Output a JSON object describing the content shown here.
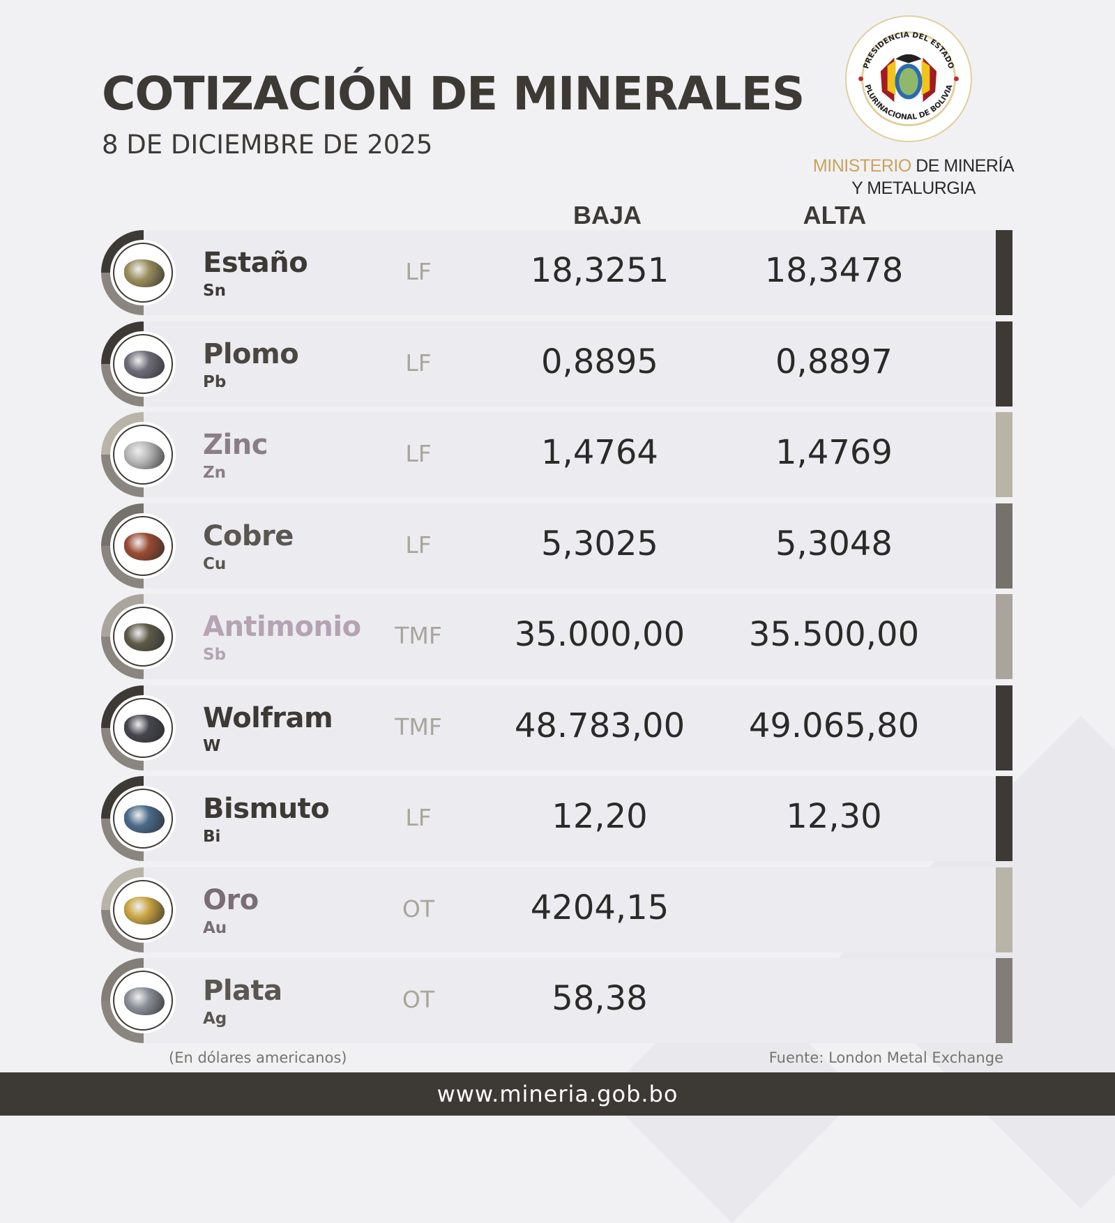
{
  "header": {
    "title": "COTIZACIÓN DE MINERALES",
    "date": "8 DE DICIEMBRE DE 2025"
  },
  "logo": {
    "seal_top": "PRESIDENCIA DEL ESTADO",
    "seal_bottom": "PLURINACIONAL DE BOLIVIA",
    "ministry_gold": "MINISTERIO",
    "ministry_rest": "DE MINERÍA",
    "ministry_line2": "Y METALURGIA"
  },
  "columns": {
    "low": "BAJA",
    "high": "ALTA"
  },
  "minerals": [
    {
      "name": "Estaño",
      "symbol": "Sn",
      "unit": "LF",
      "low": "18,3251",
      "high": "18,3478",
      "name_color": "#3d3a36",
      "bar_color": "#3d3a36",
      "rock": "#9a8d5c"
    },
    {
      "name": "Plomo",
      "symbol": "Pb",
      "unit": "LF",
      "low": "0,8895",
      "high": "0,8897",
      "name_color": "#4a4641",
      "bar_color": "#3d3a36",
      "rock": "#6e6b78"
    },
    {
      "name": "Zinc",
      "symbol": "Zn",
      "unit": "LF",
      "low": "1,4764",
      "high": "1,4769",
      "name_color": "#8a7d88",
      "bar_color": "#b8b4a8",
      "rock": "#b8b8b8"
    },
    {
      "name": "Cobre",
      "symbol": "Cu",
      "unit": "LF",
      "low": "5,3025",
      "high": "5,3048",
      "name_color": "#5a5651",
      "bar_color": "#75716b",
      "rock": "#9a4a32"
    },
    {
      "name": "Antimonio",
      "symbol": "Sb",
      "unit": "TMF",
      "low": "35.000,00",
      "high": "35.500,00",
      "name_color": "#b3a3b3",
      "bar_color": "#aaa59c",
      "rock": "#5e5a48"
    },
    {
      "name": "Wolfram",
      "symbol": "W",
      "unit": "TMF",
      "low": "48.783,00",
      "high": "49.065,80",
      "name_color": "#3d3a36",
      "bar_color": "#3d3a36",
      "rock": "#45454d"
    },
    {
      "name": "Bismuto",
      "symbol": "Bi",
      "unit": "LF",
      "low": "12,20",
      "high": "12,30",
      "name_color": "#3d3a36",
      "bar_color": "#3d3a36",
      "rock": "#4a6a8a"
    },
    {
      "name": "Oro",
      "symbol": "Au",
      "unit": "OT",
      "low": "4204,15",
      "high": "",
      "name_color": "#7a6d78",
      "bar_color": "#b8b4a8",
      "rock": "#c9a440"
    },
    {
      "name": "Plata",
      "symbol": "Ag",
      "unit": "OT",
      "low": "58,38",
      "high": "",
      "name_color": "#5a5651",
      "bar_color": "#827d77",
      "rock": "#8a8e96"
    }
  ],
  "footnotes": {
    "currency": "(En dólares americanos)",
    "source": "Fuente: London Metal Exchange"
  },
  "footer": {
    "url": "www.mineria.gob.bo"
  }
}
